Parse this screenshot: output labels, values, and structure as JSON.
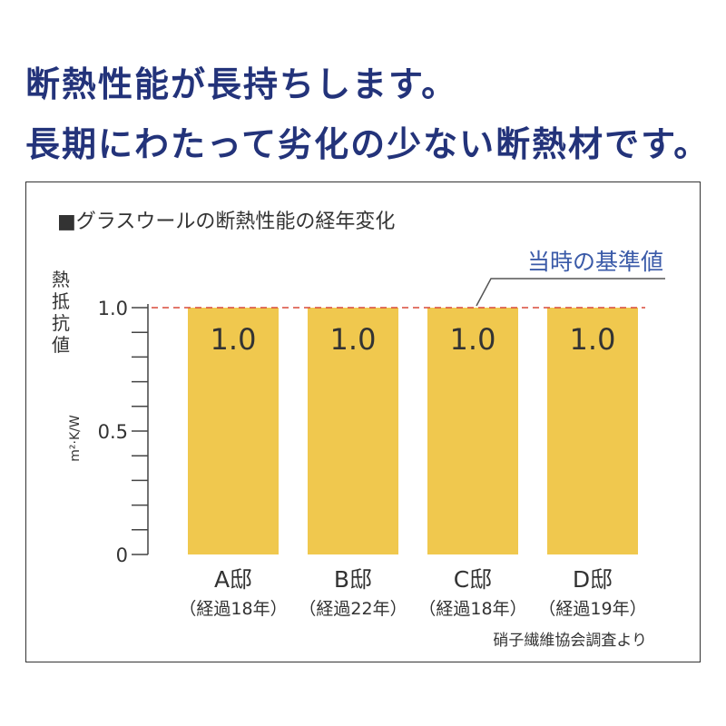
{
  "headline": {
    "line1": "断熱性能が長持ちします。",
    "line2": "長期にわたって劣化の少ない断熱材です。"
  },
  "chart_data": {
    "type": "bar",
    "title": "■グラスウールの断熱性能の経年変化",
    "ylabel": "熱抵抗値",
    "yunit": "m²·K/W",
    "ylim": [
      0,
      1.0
    ],
    "yticks": [
      "0",
      "0.5",
      "1.0"
    ],
    "categories": [
      "A邸",
      "B邸",
      "C邸",
      "D邸"
    ],
    "category_notes": [
      "（経過18年）",
      "（経過22年）",
      "（経過18年）",
      "（経過19年）"
    ],
    "values": [
      1.0,
      1.0,
      1.0,
      1.0
    ],
    "value_labels": [
      "1.0",
      "1.0",
      "1.0",
      "1.0"
    ],
    "reference": {
      "value": 1.0,
      "label": "当時の基準値"
    },
    "bar_color": "#f0c84e",
    "reference_color": "#d94a3a",
    "source": "硝子繊維協会調査より"
  }
}
